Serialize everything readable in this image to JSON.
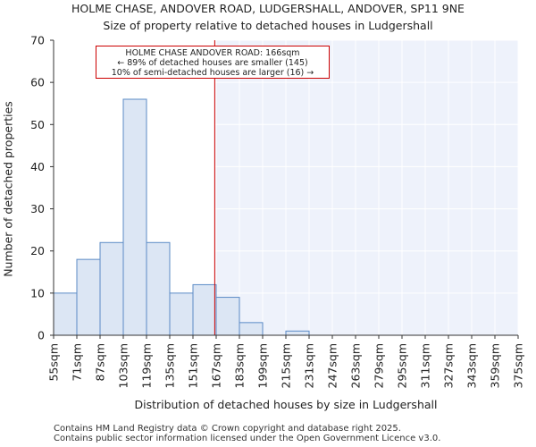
{
  "title_line_1": "HOLME CHASE, ANDOVER ROAD, LUDGERSHALL, ANDOVER, SP11 9NE",
  "title_line_2": "Size of property relative to detached houses in Ludgershall",
  "annotation": {
    "line_1": "HOLME CHASE ANDOVER ROAD: 166sqm",
    "line_2": "← 89% of detached houses are smaller (145)",
    "line_3": "10% of semi-detached houses are larger (16) →"
  },
  "footer_line_1": "Contains HM Land Registry data © Crown copyright and database right 2025.",
  "footer_line_2": "Contains public sector information licensed under the Open Government Licence v3.0.",
  "colors": {
    "bar_fill": "#dce6f4",
    "bar_stroke": "#5b8bc6",
    "marker_line": "#cc0000",
    "highlight_region": "#eef2fb"
  },
  "chart_data": {
    "type": "bar",
    "xlabel": "Distribution of detached houses by size in Ludgershall",
    "ylabel": "Number of detached properties",
    "ylim": [
      0,
      70
    ],
    "yticks": [
      0,
      10,
      20,
      30,
      40,
      50,
      60,
      70
    ],
    "bin_edges": [
      55,
      71,
      87,
      103,
      119,
      135,
      151,
      167,
      183,
      199,
      215,
      231,
      247,
      263,
      279,
      295,
      311,
      327,
      343,
      359,
      375
    ],
    "tick_labels": [
      "55sqm",
      "71sqm",
      "87sqm",
      "103sqm",
      "119sqm",
      "135sqm",
      "151sqm",
      "167sqm",
      "183sqm",
      "199sqm",
      "215sqm",
      "231sqm",
      "247sqm",
      "263sqm",
      "279sqm",
      "295sqm",
      "311sqm",
      "327sqm",
      "343sqm",
      "359sqm",
      "375sqm"
    ],
    "values": [
      10,
      18,
      22,
      56,
      22,
      10,
      12,
      9,
      3,
      0,
      1,
      0,
      0,
      0,
      0,
      0,
      0,
      0,
      0,
      0
    ],
    "marker_value": 166,
    "grid": true
  }
}
